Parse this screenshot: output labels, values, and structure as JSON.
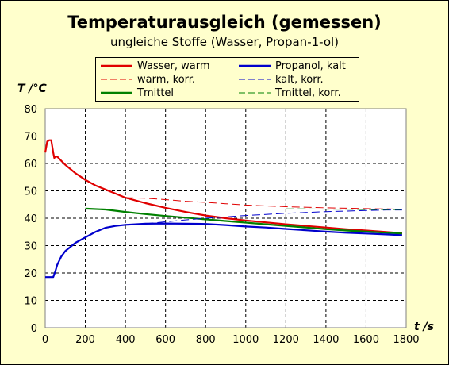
{
  "chart_data": {
    "type": "line",
    "title": "Temperaturausgleich (gemessen)",
    "subtitle": "ungleiche Stoffe (Wasser, Propan-1-ol)",
    "xlabel": "t /s",
    "ylabel": "T /°C",
    "xlim": [
      0,
      1800
    ],
    "ylim": [
      0,
      80
    ],
    "xticks": [
      0,
      200,
      400,
      600,
      800,
      1000,
      1200,
      1400,
      1600,
      1800
    ],
    "yticks": [
      0,
      10,
      20,
      30,
      40,
      50,
      60,
      70,
      80
    ],
    "grid": "dashed",
    "legend_position": "top",
    "series": [
      {
        "name": "Wasser, warm",
        "color": "#e00000",
        "style": "solid",
        "x": [
          0,
          10,
          20,
          30,
          40,
          45,
          50,
          60,
          80,
          100,
          150,
          200,
          250,
          300,
          350,
          400,
          450,
          500,
          600,
          700,
          800,
          900,
          1000,
          1100,
          1200,
          1300,
          1400,
          1500,
          1600,
          1700,
          1780
        ],
        "y": [
          64,
          68,
          68.5,
          68.5,
          64,
          62,
          62.5,
          62.5,
          61,
          59.5,
          56.5,
          54,
          52,
          50.5,
          49,
          47.5,
          46.5,
          45.5,
          43.8,
          42.3,
          41,
          40,
          39.2,
          38.5,
          37.8,
          37.2,
          36.6,
          36,
          35.5,
          35,
          34.5
        ]
      },
      {
        "name": "warm, korr.",
        "color": "#e00000",
        "style": "dashed",
        "x": [
          400,
          500,
          600,
          700,
          800,
          900,
          1000,
          1200,
          1400,
          1600,
          1780
        ],
        "y": [
          47.5,
          47.3,
          46.8,
          46.2,
          45.8,
          45.3,
          44.8,
          44.2,
          43.8,
          43.5,
          43.3
        ]
      },
      {
        "name": "Tmittel",
        "color": "#008000",
        "style": "solid",
        "x": [
          200,
          300,
          400,
          500,
          600,
          700,
          800,
          900,
          1000,
          1100,
          1200,
          1300,
          1400,
          1500,
          1600,
          1700,
          1780
        ],
        "y": [
          43.5,
          43.2,
          42.3,
          41.5,
          40.8,
          40.2,
          39.6,
          39,
          38.4,
          37.8,
          37.2,
          36.6,
          36,
          35.5,
          35.1,
          34.7,
          34.4
        ]
      },
      {
        "name": "Propanol, kalt",
        "color": "#0000cc",
        "style": "solid",
        "x": [
          0,
          40,
          50,
          60,
          80,
          100,
          150,
          200,
          250,
          300,
          350,
          400,
          500,
          600,
          700,
          800,
          900,
          1000,
          1100,
          1200,
          1300,
          1400,
          1500,
          1600,
          1700,
          1780
        ],
        "y": [
          18.5,
          18.5,
          20.5,
          23,
          26,
          28,
          31,
          33,
          35,
          36.5,
          37.2,
          37.6,
          38,
          38.1,
          38,
          37.9,
          37.5,
          37,
          36.6,
          36.1,
          35.6,
          35.1,
          34.7,
          34.4,
          34.1,
          33.8
        ]
      },
      {
        "name": "kalt, korr.",
        "color": "#0000cc",
        "style": "dashed",
        "x": [
          500,
          600,
          700,
          800,
          900,
          1000,
          1100,
          1200,
          1300,
          1400,
          1500,
          1600,
          1700,
          1780
        ],
        "y": [
          38,
          38.7,
          39.4,
          40,
          40.5,
          41,
          41.4,
          41.8,
          42.1,
          42.4,
          42.6,
          42.8,
          43,
          43
        ]
      },
      {
        "name": "Tmittel, korr.",
        "color": "#008000",
        "style": "dashed",
        "x": [
          1200,
          1300,
          1400,
          1500,
          1600,
          1700,
          1780
        ],
        "y": [
          43.4,
          43.4,
          43.3,
          43.3,
          43.2,
          43.2,
          43.2
        ]
      }
    ]
  }
}
